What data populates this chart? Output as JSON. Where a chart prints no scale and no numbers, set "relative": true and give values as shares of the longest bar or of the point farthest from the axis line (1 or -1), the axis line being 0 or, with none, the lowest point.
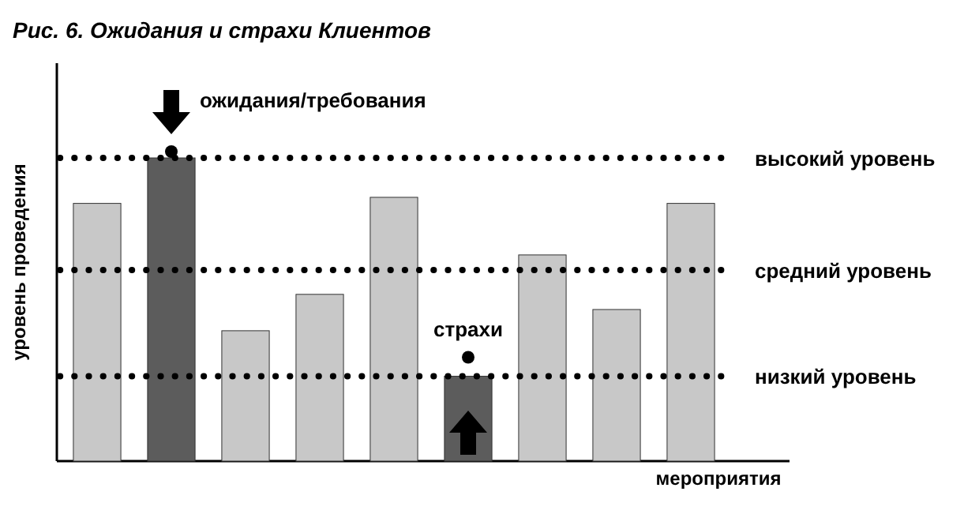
{
  "chart_data": {
    "type": "bar",
    "title": "Рис. 6. Ожидания и страхи Клиентов",
    "xlabel": "мероприятия",
    "ylabel": "уровень проведения",
    "relative": true,
    "categories": [
      null,
      null,
      null,
      null,
      null,
      null,
      null,
      null,
      null
    ],
    "values": [
      0.85,
      1,
      0.43,
      0.55,
      0.87,
      0.28,
      0.68,
      0.5,
      0.85
    ],
    "colors": [
      "#c8c8c8",
      "#5c5c5c",
      "#c8c8c8",
      "#c8c8c8",
      "#c8c8c8",
      "#5c5c5c",
      "#c8c8c8",
      "#c8c8c8",
      "#c8c8c8"
    ],
    "ref_lines": [
      {
        "axis": "y",
        "value": 1,
        "label": "высокий уровень",
        "color": "#000000",
        "line_style": "dotted"
      },
      {
        "axis": "y",
        "value": 0.63,
        "label": "средний уровень",
        "color": "#000000",
        "line_style": "dotted"
      },
      {
        "axis": "y",
        "value": 0.28,
        "label": "низкий уровень",
        "color": "#000000",
        "line_style": "dotted"
      }
    ],
    "annotations": [
      "ожидания/требования",
      "страхи"
    ]
  }
}
